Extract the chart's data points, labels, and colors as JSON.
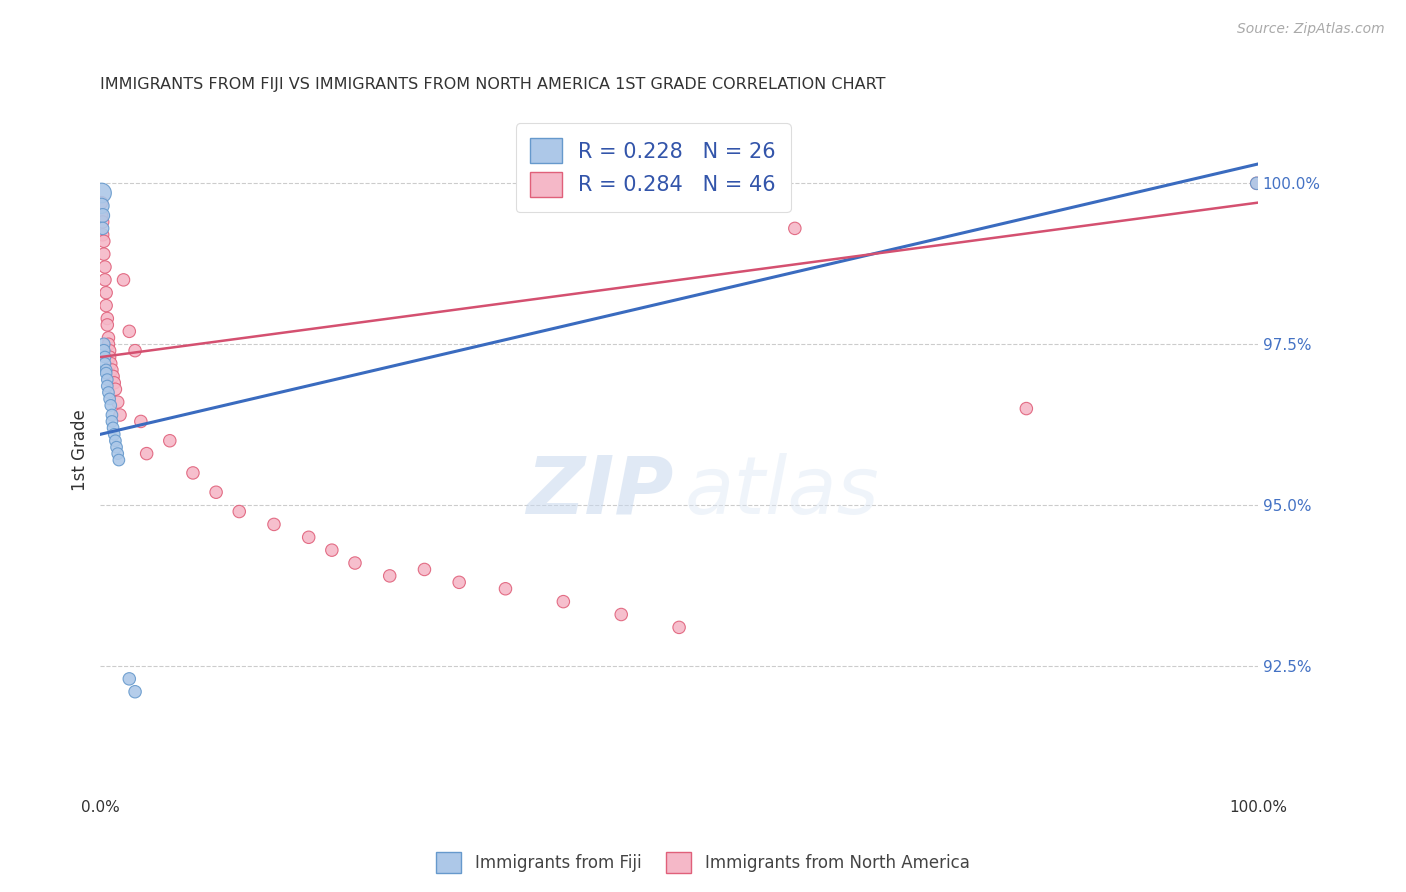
{
  "title": "IMMIGRANTS FROM FIJI VS IMMIGRANTS FROM NORTH AMERICA 1ST GRADE CORRELATION CHART",
  "source": "Source: ZipAtlas.com",
  "ylabel": "1st Grade",
  "ylabel_right_ticks": [
    92.5,
    95.0,
    97.5,
    100.0
  ],
  "ylabel_right_labels": [
    "92.5%",
    "95.0%",
    "97.5%",
    "100.0%"
  ],
  "fiji_color": "#adc8e8",
  "fiji_edge_color": "#6699cc",
  "na_color": "#f5b8c8",
  "na_edge_color": "#e0607a",
  "fiji_R": 0.228,
  "fiji_N": 26,
  "na_R": 0.284,
  "na_N": 46,
  "fiji_line_color": "#3a6bbf",
  "na_line_color": "#d45070",
  "watermark_zip": "ZIP",
  "watermark_atlas": "atlas",
  "background_color": "#ffffff",
  "fiji_scatter_x": [
    0.001,
    0.001,
    0.002,
    0.002,
    0.003,
    0.003,
    0.004,
    0.004,
    0.005,
    0.005,
    0.006,
    0.006,
    0.007,
    0.008,
    0.009,
    0.01,
    0.01,
    0.011,
    0.012,
    0.013,
    0.014,
    0.015,
    0.016,
    0.025,
    0.03,
    0.999
  ],
  "fiji_scatter_y": [
    99.85,
    99.65,
    99.5,
    99.3,
    97.5,
    97.4,
    97.3,
    97.2,
    97.1,
    97.05,
    96.95,
    96.85,
    96.75,
    96.65,
    96.55,
    96.4,
    96.3,
    96.2,
    96.1,
    96.0,
    95.9,
    95.8,
    95.7,
    92.3,
    92.1,
    100.0
  ],
  "fiji_scatter_sizes": [
    200,
    120,
    100,
    80,
    80,
    80,
    70,
    70,
    70,
    70,
    70,
    70,
    70,
    70,
    70,
    70,
    70,
    70,
    70,
    70,
    70,
    70,
    70,
    80,
    80,
    80
  ],
  "na_scatter_x": [
    0.001,
    0.001,
    0.002,
    0.002,
    0.003,
    0.003,
    0.004,
    0.004,
    0.005,
    0.005,
    0.006,
    0.006,
    0.007,
    0.007,
    0.008,
    0.008,
    0.009,
    0.01,
    0.011,
    0.012,
    0.013,
    0.015,
    0.017,
    0.02,
    0.025,
    0.03,
    0.035,
    0.04,
    0.06,
    0.08,
    0.1,
    0.12,
    0.15,
    0.18,
    0.2,
    0.22,
    0.25,
    0.28,
    0.31,
    0.35,
    0.4,
    0.45,
    0.5,
    0.6,
    0.8,
    0.999
  ],
  "na_scatter_y": [
    99.7,
    99.5,
    99.4,
    99.2,
    99.1,
    98.9,
    98.7,
    98.5,
    98.3,
    98.1,
    97.9,
    97.8,
    97.6,
    97.5,
    97.4,
    97.3,
    97.2,
    97.1,
    97.0,
    96.9,
    96.8,
    96.6,
    96.4,
    98.5,
    97.7,
    97.4,
    96.3,
    95.8,
    96.0,
    95.5,
    95.2,
    94.9,
    94.7,
    94.5,
    94.3,
    94.1,
    93.9,
    94.0,
    93.8,
    93.7,
    93.5,
    93.3,
    93.1,
    99.3,
    96.5,
    100.0
  ],
  "na_scatter_sizes": [
    80,
    80,
    80,
    80,
    80,
    80,
    80,
    80,
    80,
    80,
    80,
    80,
    80,
    80,
    80,
    80,
    80,
    80,
    80,
    80,
    80,
    80,
    80,
    80,
    80,
    80,
    80,
    80,
    80,
    80,
    80,
    80,
    80,
    80,
    80,
    80,
    80,
    80,
    80,
    80,
    80,
    80,
    80,
    80,
    80,
    80
  ],
  "fiji_trendline_x": [
    0.0,
    1.0
  ],
  "fiji_trendline_y": [
    96.1,
    100.3
  ],
  "na_trendline_x": [
    0.0,
    1.0
  ],
  "na_trendline_y": [
    97.3,
    99.7
  ],
  "xlim": [
    0.0,
    1.0
  ],
  "ylim": [
    90.5,
    101.2
  ]
}
